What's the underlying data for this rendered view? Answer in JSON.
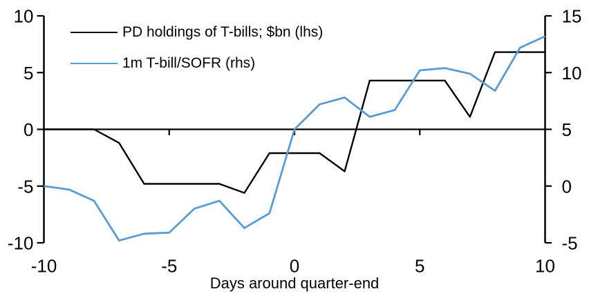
{
  "chart_data": {
    "type": "line",
    "title": "",
    "xlabel": "Days around quarter-end",
    "grid": false,
    "legend_position": "top-left",
    "x": [
      -10,
      -9,
      -8,
      -7,
      -6,
      -5,
      -4,
      -3,
      -2,
      -1,
      0,
      1,
      2,
      3,
      4,
      5,
      6,
      7,
      8,
      9,
      10
    ],
    "series": [
      {
        "name": "PD holdings of T-bills; $bn (lhs)",
        "axis": "left",
        "color": "#000000",
        "values": [
          0.0,
          0.0,
          0.0,
          -1.2,
          -4.8,
          -4.8,
          -4.8,
          -4.8,
          -5.6,
          -2.1,
          -2.1,
          -2.1,
          -3.7,
          4.3,
          4.3,
          4.3,
          4.3,
          1.1,
          6.8,
          6.8,
          6.8
        ]
      },
      {
        "name": "1m T-bill/SOFR (rhs)",
        "axis": "right",
        "color": "#5B9BD5",
        "values": [
          0.0,
          -0.3,
          -1.3,
          -4.8,
          -4.2,
          -4.1,
          -2.0,
          -1.3,
          -3.7,
          -2.4,
          5.0,
          7.2,
          7.8,
          6.1,
          6.7,
          10.2,
          10.4,
          9.9,
          8.4,
          12.2,
          13.2
        ]
      }
    ],
    "axes": {
      "left": {
        "min": -10,
        "max": 10,
        "ticks": [
          10,
          5,
          0,
          -5,
          -10
        ],
        "tick_labels": [
          "10",
          "5",
          "0",
          "-5",
          "-10"
        ]
      },
      "right": {
        "min": -5,
        "max": 15,
        "ticks": [
          15,
          10,
          5,
          0,
          -5
        ],
        "tick_labels": [
          "15",
          "10",
          "5",
          "0",
          "-5"
        ]
      },
      "x": {
        "min": -10,
        "max": 10,
        "ticks": [
          -10,
          -5,
          0,
          5,
          10
        ],
        "tick_labels": [
          "-10",
          "-5",
          "0",
          "5",
          "10"
        ],
        "tick_marks": [
          -5,
          0,
          5
        ]
      }
    }
  },
  "colors": {
    "series_pd_holdings": "#000000",
    "series_tbill_sofr": "#5B9BD5",
    "axis": "#000000",
    "background": "#FFFFFF"
  }
}
